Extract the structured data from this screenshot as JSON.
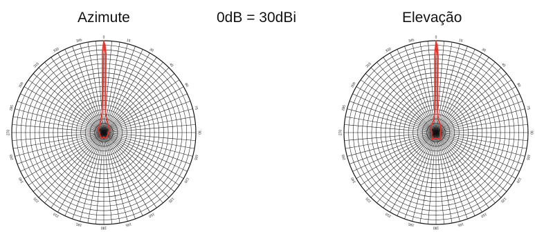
{
  "header": {
    "azimuth_title": "Azimute",
    "gain_reference": "0dB = 30dBi",
    "elevation_title": "Elevação"
  },
  "colors": {
    "grid": "#111111",
    "pattern": "#e8322a",
    "background": "#ffffff"
  },
  "chart_data": [
    {
      "type": "polar-line",
      "title": "Azimute",
      "angle_ticks": [
        "0",
        "15",
        "30",
        "45",
        "60",
        "75",
        "90",
        "105",
        "120",
        "135",
        "150",
        "165",
        "180",
        "195",
        "210",
        "225",
        "240",
        "255",
        "270",
        "285",
        "300",
        "315",
        "330",
        "345"
      ],
      "angle_unit": "degrees",
      "radial_rings": 20,
      "radial_spokes": 72,
      "series": [
        {
          "color": "#e8322a",
          "points": [
            {
              "theta": 0,
              "r": 1.0
            },
            {
              "theta": 1,
              "r": 0.88
            },
            {
              "theta": 2,
              "r": 0.45
            },
            {
              "theta": 3,
              "r": 0.32
            },
            {
              "theta": 5,
              "r": 0.22
            },
            {
              "theta": 10,
              "r": 0.16
            },
            {
              "theta": 25,
              "r": 0.1
            },
            {
              "theta": 60,
              "r": 0.07
            },
            {
              "theta": 120,
              "r": 0.05
            },
            {
              "theta": 160,
              "r": 0.07
            },
            {
              "theta": 180,
              "r": 0.05
            },
            {
              "theta": 200,
              "r": 0.07
            },
            {
              "theta": 240,
              "r": 0.05
            },
            {
              "theta": 300,
              "r": 0.07
            },
            {
              "theta": 335,
              "r": 0.1
            },
            {
              "theta": 350,
              "r": 0.16
            },
            {
              "theta": 355,
              "r": 0.22
            },
            {
              "theta": 357,
              "r": 0.32
            },
            {
              "theta": 358,
              "r": 0.45
            },
            {
              "theta": 359,
              "r": 0.88
            },
            {
              "theta": 360,
              "r": 1.0
            }
          ]
        }
      ]
    },
    {
      "type": "polar-line",
      "title": "Elevação",
      "angle_ticks": [
        "0",
        "15",
        "30",
        "45",
        "60",
        "75",
        "90",
        "105",
        "120",
        "135",
        "150",
        "165",
        "180",
        "195",
        "210",
        "225",
        "240",
        "255",
        "270",
        "285",
        "300",
        "315",
        "330",
        "345"
      ],
      "angle_unit": "degrees",
      "radial_rings": 20,
      "radial_spokes": 72,
      "series": [
        {
          "color": "#e8322a",
          "points": [
            {
              "theta": 0,
              "r": 1.0
            },
            {
              "theta": 1,
              "r": 0.85
            },
            {
              "theta": 2,
              "r": 0.4
            },
            {
              "theta": 3,
              "r": 0.28
            },
            {
              "theta": 5,
              "r": 0.2
            },
            {
              "theta": 10,
              "r": 0.14
            },
            {
              "theta": 20,
              "r": 0.11
            },
            {
              "theta": 35,
              "r": 0.09
            },
            {
              "theta": 60,
              "r": 0.06
            },
            {
              "theta": 110,
              "r": 0.05
            },
            {
              "theta": 150,
              "r": 0.09
            },
            {
              "theta": 180,
              "r": 0.06
            },
            {
              "theta": 210,
              "r": 0.09
            },
            {
              "theta": 250,
              "r": 0.05
            },
            {
              "theta": 300,
              "r": 0.06
            },
            {
              "theta": 325,
              "r": 0.09
            },
            {
              "theta": 340,
              "r": 0.11
            },
            {
              "theta": 350,
              "r": 0.14
            },
            {
              "theta": 355,
              "r": 0.2
            },
            {
              "theta": 357,
              "r": 0.28
            },
            {
              "theta": 358,
              "r": 0.4
            },
            {
              "theta": 359,
              "r": 0.85
            },
            {
              "theta": 360,
              "r": 1.0
            }
          ]
        }
      ]
    }
  ]
}
